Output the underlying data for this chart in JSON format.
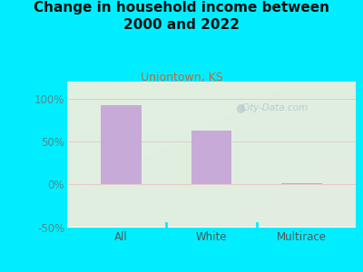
{
  "title": "Change in household income between\n2000 and 2022",
  "subtitle": "Uniontown, KS",
  "categories": [
    "All",
    "White",
    "Multirace"
  ],
  "values": [
    92,
    63,
    1
  ],
  "bar_color": "#c8aad8",
  "background_outer": "#00eeff",
  "background_plot_color": "#e8f2e0",
  "title_color": "#111111",
  "subtitle_color": "#cc6633",
  "axis_label_color": "#558888",
  "ylim": [
    -50,
    120
  ],
  "yticks": [
    -50,
    0,
    50,
    100
  ],
  "ytick_labels": [
    "-50%",
    "0%",
    "50%",
    "100%"
  ],
  "grid_color": "#e8c8c8",
  "title_fontsize": 11,
  "subtitle_fontsize": 9,
  "tick_fontsize": 8.5,
  "watermark": "City-Data.com"
}
